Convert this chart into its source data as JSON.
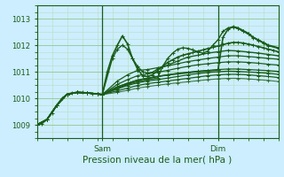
{
  "background_color": "#cceeff",
  "plot_bg_color": "#cceeff",
  "grid_major_color": "#99cc99",
  "grid_minor_color": "#bbddbb",
  "line_color": "#1a5c1a",
  "marker": "+",
  "xlabel": "Pression niveau de la mer( hPa )",
  "xlabel_fontsize": 7.5,
  "yticks": [
    1009,
    1010,
    1011,
    1012,
    1013
  ],
  "ylim": [
    1008.5,
    1013.5
  ],
  "xlim": [
    0,
    96
  ],
  "sam_x": 26,
  "dim_x": 72,
  "series": [
    {
      "pts": [
        [
          0,
          1009.0
        ],
        [
          2,
          1009.05
        ],
        [
          4,
          1009.2
        ],
        [
          6,
          1009.45
        ],
        [
          8,
          1009.75
        ],
        [
          10,
          1010.0
        ],
        [
          12,
          1010.15
        ],
        [
          14,
          1010.2
        ],
        [
          16,
          1010.22
        ],
        [
          18,
          1010.22
        ],
        [
          20,
          1010.2
        ],
        [
          22,
          1010.18
        ],
        [
          24,
          1010.16
        ],
        [
          26,
          1010.14
        ],
        [
          28,
          1011.0
        ],
        [
          30,
          1011.6
        ],
        [
          32,
          1012.0
        ],
        [
          34,
          1012.35
        ],
        [
          36,
          1012.05
        ],
        [
          38,
          1011.5
        ],
        [
          40,
          1011.1
        ],
        [
          42,
          1010.85
        ],
        [
          44,
          1010.82
        ],
        [
          46,
          1010.88
        ],
        [
          48,
          1011.05
        ],
        [
          50,
          1011.2
        ],
        [
          52,
          1011.35
        ],
        [
          54,
          1011.45
        ],
        [
          56,
          1011.55
        ],
        [
          58,
          1011.62
        ],
        [
          60,
          1011.67
        ],
        [
          62,
          1011.72
        ],
        [
          64,
          1011.77
        ],
        [
          66,
          1011.82
        ],
        [
          68,
          1011.87
        ],
        [
          70,
          1011.92
        ],
        [
          72,
          1011.97
        ],
        [
          74,
          1012.02
        ],
        [
          76,
          1012.07
        ],
        [
          78,
          1012.1
        ],
        [
          80,
          1012.1
        ],
        [
          82,
          1012.08
        ],
        [
          84,
          1012.04
        ],
        [
          86,
          1012.0
        ],
        [
          88,
          1011.95
        ],
        [
          90,
          1011.9
        ],
        [
          92,
          1011.85
        ],
        [
          94,
          1011.8
        ],
        [
          96,
          1011.75
        ]
      ],
      "lw": 1.2,
      "alpha": 1.0
    },
    {
      "pts": [
        [
          0,
          1009.0
        ],
        [
          4,
          1009.2
        ],
        [
          8,
          1009.75
        ],
        [
          12,
          1010.15
        ],
        [
          16,
          1010.22
        ],
        [
          20,
          1010.2
        ],
        [
          24,
          1010.16
        ],
        [
          26,
          1010.14
        ],
        [
          30,
          1011.5
        ],
        [
          32,
          1011.85
        ],
        [
          34,
          1012.0
        ],
        [
          36,
          1011.85
        ],
        [
          38,
          1011.5
        ],
        [
          40,
          1011.2
        ],
        [
          42,
          1011.0
        ],
        [
          44,
          1010.95
        ],
        [
          46,
          1010.98
        ],
        [
          48,
          1011.1
        ],
        [
          52,
          1011.25
        ],
        [
          56,
          1011.4
        ],
        [
          60,
          1011.55
        ],
        [
          64,
          1011.62
        ],
        [
          68,
          1011.7
        ],
        [
          72,
          1011.75
        ],
        [
          76,
          1011.8
        ],
        [
          80,
          1011.78
        ],
        [
          84,
          1011.74
        ],
        [
          88,
          1011.7
        ],
        [
          92,
          1011.65
        ],
        [
          96,
          1011.6
        ]
      ],
      "lw": 1.0,
      "alpha": 1.0
    },
    {
      "pts": [
        [
          0,
          1009.0
        ],
        [
          4,
          1009.2
        ],
        [
          8,
          1009.75
        ],
        [
          12,
          1010.15
        ],
        [
          16,
          1010.22
        ],
        [
          20,
          1010.2
        ],
        [
          24,
          1010.16
        ],
        [
          26,
          1010.14
        ],
        [
          32,
          1010.65
        ],
        [
          36,
          1010.88
        ],
        [
          40,
          1011.05
        ],
        [
          44,
          1011.08
        ],
        [
          48,
          1011.15
        ],
        [
          52,
          1011.22
        ],
        [
          56,
          1011.3
        ],
        [
          60,
          1011.38
        ],
        [
          64,
          1011.44
        ],
        [
          68,
          1011.5
        ],
        [
          72,
          1011.55
        ],
        [
          76,
          1011.6
        ],
        [
          80,
          1011.6
        ],
        [
          84,
          1011.57
        ],
        [
          88,
          1011.54
        ],
        [
          92,
          1011.5
        ],
        [
          96,
          1011.47
        ]
      ],
      "lw": 0.9,
      "alpha": 1.0
    },
    {
      "pts": [
        [
          0,
          1009.0
        ],
        [
          4,
          1009.2
        ],
        [
          8,
          1009.75
        ],
        [
          12,
          1010.15
        ],
        [
          16,
          1010.22
        ],
        [
          20,
          1010.2
        ],
        [
          24,
          1010.16
        ],
        [
          26,
          1010.14
        ],
        [
          32,
          1010.52
        ],
        [
          36,
          1010.7
        ],
        [
          40,
          1010.85
        ],
        [
          44,
          1010.92
        ],
        [
          48,
          1010.98
        ],
        [
          52,
          1011.05
        ],
        [
          56,
          1011.13
        ],
        [
          60,
          1011.2
        ],
        [
          64,
          1011.26
        ],
        [
          68,
          1011.3
        ],
        [
          72,
          1011.34
        ],
        [
          76,
          1011.37
        ],
        [
          80,
          1011.37
        ],
        [
          84,
          1011.35
        ],
        [
          88,
          1011.32
        ],
        [
          92,
          1011.28
        ],
        [
          96,
          1011.25
        ]
      ],
      "lw": 0.9,
      "alpha": 1.0
    },
    {
      "pts": [
        [
          0,
          1009.0
        ],
        [
          4,
          1009.2
        ],
        [
          8,
          1009.75
        ],
        [
          12,
          1010.15
        ],
        [
          16,
          1010.22
        ],
        [
          20,
          1010.2
        ],
        [
          24,
          1010.16
        ],
        [
          26,
          1010.14
        ],
        [
          32,
          1010.42
        ],
        [
          36,
          1010.57
        ],
        [
          40,
          1010.68
        ],
        [
          44,
          1010.76
        ],
        [
          48,
          1010.82
        ],
        [
          52,
          1010.88
        ],
        [
          56,
          1010.94
        ],
        [
          60,
          1010.98
        ],
        [
          64,
          1011.02
        ],
        [
          68,
          1011.05
        ],
        [
          72,
          1011.08
        ],
        [
          76,
          1011.1
        ],
        [
          80,
          1011.1
        ],
        [
          84,
          1011.08
        ],
        [
          88,
          1011.06
        ],
        [
          92,
          1011.04
        ],
        [
          96,
          1011.01
        ]
      ],
      "lw": 0.9,
      "alpha": 1.0
    },
    {
      "pts": [
        [
          0,
          1009.0
        ],
        [
          4,
          1009.2
        ],
        [
          8,
          1009.75
        ],
        [
          12,
          1010.15
        ],
        [
          16,
          1010.22
        ],
        [
          20,
          1010.2
        ],
        [
          24,
          1010.16
        ],
        [
          26,
          1010.14
        ],
        [
          32,
          1010.35
        ],
        [
          36,
          1010.48
        ],
        [
          40,
          1010.58
        ],
        [
          44,
          1010.65
        ],
        [
          48,
          1010.7
        ],
        [
          52,
          1010.76
        ],
        [
          56,
          1010.82
        ],
        [
          60,
          1010.88
        ],
        [
          64,
          1010.93
        ],
        [
          68,
          1010.97
        ],
        [
          72,
          1011.0
        ],
        [
          76,
          1011.02
        ],
        [
          80,
          1011.01
        ],
        [
          84,
          1010.99
        ],
        [
          88,
          1010.97
        ],
        [
          92,
          1010.94
        ],
        [
          96,
          1010.9
        ]
      ],
      "lw": 0.9,
      "alpha": 1.0
    },
    {
      "pts": [
        [
          0,
          1009.0
        ],
        [
          4,
          1009.2
        ],
        [
          8,
          1009.75
        ],
        [
          12,
          1010.15
        ],
        [
          16,
          1010.22
        ],
        [
          20,
          1010.2
        ],
        [
          24,
          1010.16
        ],
        [
          26,
          1010.14
        ],
        [
          32,
          1010.28
        ],
        [
          36,
          1010.38
        ],
        [
          40,
          1010.48
        ],
        [
          44,
          1010.55
        ],
        [
          48,
          1010.6
        ],
        [
          52,
          1010.65
        ],
        [
          56,
          1010.7
        ],
        [
          60,
          1010.75
        ],
        [
          64,
          1010.8
        ],
        [
          68,
          1010.85
        ],
        [
          72,
          1010.88
        ],
        [
          76,
          1010.9
        ],
        [
          80,
          1010.9
        ],
        [
          84,
          1010.88
        ],
        [
          88,
          1010.85
        ],
        [
          92,
          1010.82
        ],
        [
          96,
          1010.78
        ]
      ],
      "lw": 0.9,
      "alpha": 1.0
    },
    {
      "pts": [
        [
          0,
          1009.0
        ],
        [
          4,
          1009.2
        ],
        [
          8,
          1009.75
        ],
        [
          12,
          1010.15
        ],
        [
          16,
          1010.22
        ],
        [
          20,
          1010.2
        ],
        [
          24,
          1010.16
        ],
        [
          26,
          1010.14
        ],
        [
          32,
          1010.22
        ],
        [
          36,
          1010.3
        ],
        [
          40,
          1010.38
        ],
        [
          44,
          1010.44
        ],
        [
          48,
          1010.49
        ],
        [
          52,
          1010.54
        ],
        [
          56,
          1010.58
        ],
        [
          60,
          1010.62
        ],
        [
          64,
          1010.66
        ],
        [
          68,
          1010.7
        ],
        [
          72,
          1010.73
        ],
        [
          76,
          1010.75
        ],
        [
          80,
          1010.75
        ],
        [
          84,
          1010.73
        ],
        [
          88,
          1010.7
        ],
        [
          92,
          1010.67
        ],
        [
          96,
          1010.63
        ]
      ],
      "lw": 0.8,
      "alpha": 0.8
    },
    {
      "pts": [
        [
          0,
          1009.0
        ],
        [
          4,
          1009.2
        ],
        [
          8,
          1009.75
        ],
        [
          12,
          1010.15
        ],
        [
          16,
          1010.22
        ],
        [
          20,
          1010.2
        ],
        [
          24,
          1010.16
        ],
        [
          26,
          1010.14
        ],
        [
          32,
          1010.43
        ],
        [
          36,
          1010.55
        ],
        [
          40,
          1010.68
        ],
        [
          44,
          1010.75
        ],
        [
          48,
          1010.82
        ],
        [
          52,
          1010.88
        ],
        [
          56,
          1010.92
        ],
        [
          60,
          1010.96
        ],
        [
          64,
          1011.0
        ],
        [
          68,
          1011.03
        ],
        [
          72,
          1011.06
        ],
        [
          74,
          1012.3
        ],
        [
          76,
          1012.6
        ],
        [
          78,
          1012.7
        ],
        [
          80,
          1012.65
        ],
        [
          82,
          1012.55
        ],
        [
          84,
          1012.45
        ],
        [
          86,
          1012.3
        ],
        [
          88,
          1012.2
        ],
        [
          90,
          1012.1
        ],
        [
          92,
          1012.0
        ],
        [
          96,
          1011.9
        ]
      ],
      "lw": 1.2,
      "alpha": 1.0
    },
    {
      "pts": [
        [
          0,
          1009.0
        ],
        [
          4,
          1009.2
        ],
        [
          8,
          1009.75
        ],
        [
          12,
          1010.15
        ],
        [
          16,
          1010.22
        ],
        [
          20,
          1010.2
        ],
        [
          24,
          1010.16
        ],
        [
          26,
          1010.14
        ],
        [
          32,
          1010.38
        ],
        [
          36,
          1010.52
        ],
        [
          40,
          1010.62
        ],
        [
          44,
          1010.7
        ],
        [
          48,
          1010.76
        ],
        [
          50,
          1011.2
        ],
        [
          52,
          1011.5
        ],
        [
          54,
          1011.7
        ],
        [
          56,
          1011.85
        ],
        [
          58,
          1011.9
        ],
        [
          60,
          1011.88
        ],
        [
          62,
          1011.82
        ],
        [
          64,
          1011.75
        ],
        [
          66,
          1011.7
        ],
        [
          68,
          1011.78
        ],
        [
          70,
          1012.0
        ],
        [
          72,
          1012.2
        ],
        [
          74,
          1012.52
        ],
        [
          76,
          1012.65
        ],
        [
          78,
          1012.68
        ],
        [
          80,
          1012.62
        ],
        [
          82,
          1012.52
        ],
        [
          84,
          1012.42
        ],
        [
          86,
          1012.28
        ],
        [
          88,
          1012.18
        ],
        [
          90,
          1012.08
        ],
        [
          92,
          1011.98
        ],
        [
          96,
          1011.88
        ]
      ],
      "lw": 1.0,
      "alpha": 1.0
    }
  ]
}
